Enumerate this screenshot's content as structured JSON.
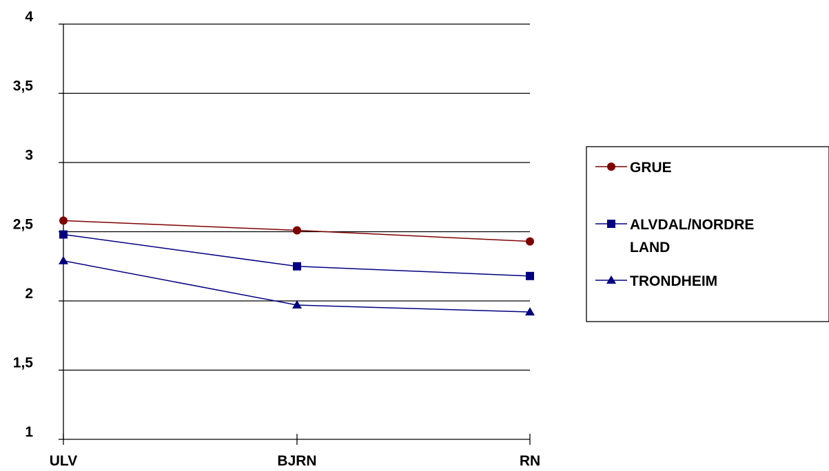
{
  "chart_data": {
    "type": "line",
    "categories": [
      "ULV",
      "BJRN",
      "RN"
    ],
    "ylim": [
      1,
      4
    ],
    "yticks": [
      1,
      1.5,
      2,
      2.5,
      3,
      3.5,
      4
    ],
    "ytick_labels": [
      "1",
      "1,5",
      "2",
      "2,5",
      "3",
      "3,5",
      "4"
    ],
    "grid": true,
    "legend_position": "right",
    "series": [
      {
        "name": "GRUE",
        "values": [
          2.58,
          2.51,
          2.43
        ],
        "color": "#7f0000",
        "marker": "circle"
      },
      {
        "name": "ALVDAL/NORDRE LAND",
        "legend_lines": [
          "ALVDAL/NORDRE",
          "LAND"
        ],
        "values": [
          2.48,
          2.25,
          2.18
        ],
        "color": "#000080",
        "marker": "square"
      },
      {
        "name": "TRONDHEIM",
        "values": [
          2.29,
          1.97,
          1.92
        ],
        "color": "#000080",
        "marker": "triangle"
      }
    ]
  }
}
